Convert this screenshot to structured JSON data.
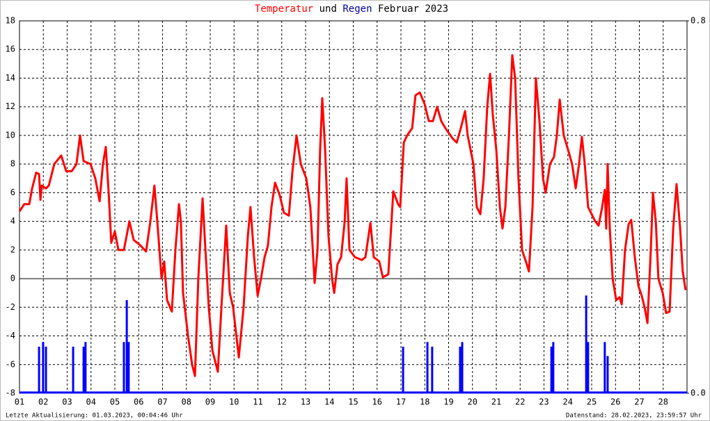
{
  "chart_data": {
    "type": "line",
    "title_middle": "und",
    "title_suffix": "Februar 2023",
    "footer_left": "Letzte Aktualisierung: 01.03.2023, 00:04:46 Uhr",
    "footer_right": "Datenstand: 28.02.2023, 23:59:57 Uhr",
    "xlim": [
      1,
      29
    ],
    "xticks": [
      {
        "value": 1,
        "label": "01"
      },
      {
        "value": 2,
        "label": "02"
      },
      {
        "value": 3,
        "label": "03"
      },
      {
        "value": 4,
        "label": "04"
      },
      {
        "value": 5,
        "label": "05"
      },
      {
        "value": 6,
        "label": "06"
      },
      {
        "value": 7,
        "label": "07"
      },
      {
        "value": 8,
        "label": "08"
      },
      {
        "value": 9,
        "label": "09"
      },
      {
        "value": 10,
        "label": "10"
      },
      {
        "value": 11,
        "label": "11"
      },
      {
        "value": 12,
        "label": "12"
      },
      {
        "value": 13,
        "label": "13"
      },
      {
        "value": 14,
        "label": "14"
      },
      {
        "value": 15,
        "label": "15"
      },
      {
        "value": 16,
        "label": "16"
      },
      {
        "value": 17,
        "label": "17"
      },
      {
        "value": 18,
        "label": "18"
      },
      {
        "value": 19,
        "label": "19"
      },
      {
        "value": 20,
        "label": "20"
      },
      {
        "value": 21,
        "label": "21"
      },
      {
        "value": 22,
        "label": "22"
      },
      {
        "value": 23,
        "label": "23"
      },
      {
        "value": 24,
        "label": "24"
      },
      {
        "value": 25,
        "label": "25"
      },
      {
        "value": 26,
        "label": "26"
      },
      {
        "value": 27,
        "label": "27"
      },
      {
        "value": 28,
        "label": "28"
      }
    ],
    "ylim": [
      -8,
      18
    ],
    "yticks": [
      -8,
      -6,
      -4,
      -2,
      0,
      2,
      4,
      6,
      8,
      10,
      12,
      14,
      16,
      18
    ],
    "y2lim": [
      0,
      0.8
    ],
    "y2ticks": [
      {
        "value": 0,
        "label": "0.0"
      },
      {
        "value": 0.8,
        "label": "0.8"
      }
    ],
    "grid": true,
    "series": [
      {
        "name": "Temperatur",
        "color": "#ff0000",
        "x": [
          1.0,
          1.2,
          1.41,
          1.53,
          1.7,
          1.82,
          1.88,
          1.93,
          2.11,
          2.23,
          2.46,
          2.75,
          2.96,
          3.19,
          3.39,
          3.54,
          3.69,
          3.98,
          4.18,
          4.36,
          4.5,
          4.62,
          4.74,
          4.85,
          5.0,
          5.15,
          5.38,
          5.61,
          5.79,
          6.02,
          6.31,
          6.49,
          6.66,
          6.78,
          6.96,
          7.07,
          7.19,
          7.39,
          7.54,
          7.69,
          7.77,
          7.86,
          8.07,
          8.24,
          8.36,
          8.5,
          8.68,
          8.8,
          8.94,
          9.09,
          9.32,
          9.47,
          9.67,
          9.82,
          9.96,
          10.2,
          10.4,
          10.58,
          10.69,
          10.84,
          10.99,
          11.13,
          11.28,
          11.42,
          11.57,
          11.72,
          11.92,
          12.09,
          12.3,
          12.45,
          12.62,
          12.8,
          13.03,
          13.2,
          13.38,
          13.5,
          13.61,
          13.7,
          13.82,
          13.96,
          14.11,
          14.2,
          14.34,
          14.49,
          14.64,
          14.72,
          14.84,
          15.07,
          15.36,
          15.51,
          15.72,
          15.86,
          16.09,
          16.24,
          16.47,
          16.68,
          16.88,
          16.97,
          17.12,
          17.26,
          17.47,
          17.61,
          17.79,
          17.99,
          18.17,
          18.34,
          18.52,
          18.69,
          18.87,
          19.16,
          19.34,
          19.51,
          19.69,
          19.8,
          20.04,
          20.18,
          20.33,
          20.47,
          20.62,
          20.74,
          20.85,
          21.0,
          21.15,
          21.26,
          21.38,
          21.53,
          21.67,
          21.79,
          21.93,
          22.08,
          22.28,
          22.37,
          22.52,
          22.66,
          22.81,
          22.96,
          23.07,
          23.25,
          23.42,
          23.54,
          23.66,
          23.83,
          24.01,
          24.18,
          24.33,
          24.47,
          24.59,
          24.71,
          24.85,
          25.0,
          25.15,
          25.29,
          25.44,
          25.55,
          25.61,
          25.67,
          25.76,
          25.88,
          26.03,
          26.17,
          26.26,
          26.4,
          26.55,
          26.66,
          26.81,
          26.96,
          27.1,
          27.22,
          27.34,
          27.48,
          27.57,
          27.69,
          27.8,
          27.98,
          28.12,
          28.27,
          28.42,
          28.56,
          28.71,
          28.82,
          28.94
        ],
        "values": [
          4.7,
          5.2,
          5.2,
          6.3,
          7.4,
          7.3,
          5.5,
          6.5,
          6.3,
          6.5,
          8,
          8.6,
          7.5,
          7.5,
          8,
          10,
          8.2,
          8,
          7,
          5.4,
          8,
          9.2,
          6,
          2.5,
          3.3,
          2,
          2,
          4,
          2.7,
          2.4,
          1.9,
          4,
          6.5,
          4,
          0,
          1.2,
          -1.5,
          -2.3,
          2,
          5.2,
          4,
          -1,
          -4,
          -6,
          -6.8,
          0,
          5.6,
          2,
          -2,
          -5,
          -6.5,
          -2,
          3.7,
          -1,
          -2,
          -5.5,
          -2,
          3,
          5,
          1.5,
          -1.2,
          0,
          1.5,
          2.3,
          5,
          6.7,
          5.8,
          4.6,
          4.4,
          7.5,
          10,
          8,
          7,
          5,
          -0.3,
          2,
          9,
          12.6,
          9,
          3,
          0,
          -1,
          1,
          1.5,
          4,
          7,
          2,
          1.5,
          1.3,
          1.5,
          3.9,
          1.5,
          1.2,
          0.1,
          0.3,
          6.1,
          5.2,
          5,
          9.5,
          10,
          10.5,
          12.8,
          13,
          12.2,
          11,
          11,
          12,
          11,
          10.5,
          9.8,
          9.5,
          10.5,
          11.7,
          10,
          8,
          5,
          4.5,
          7,
          12,
          14.3,
          11.5,
          9,
          5,
          3.5,
          5,
          10,
          15.6,
          14,
          7,
          2,
          1,
          0.5,
          5,
          14,
          11,
          7,
          6,
          8,
          8.5,
          10,
          12.5,
          10,
          9,
          8,
          6.3,
          8,
          9.9,
          8,
          5,
          4.5,
          4,
          3.7,
          5,
          6.2,
          3.5,
          8,
          3.5,
          0,
          -1.5,
          -1.3,
          -1.8,
          2,
          3.8,
          4.1,
          1.5,
          -0.5,
          -1.2,
          -2,
          -3.1,
          2,
          6,
          4,
          0,
          -1,
          -2.4,
          -2.3,
          3.5,
          6.6,
          3.5,
          0.5,
          -0.8
        ]
      },
      {
        "name": "Regen",
        "color": "#0000ff",
        "axis": "y2",
        "kind": "bar",
        "x": [
          1.82,
          1.99,
          2.11,
          3.25,
          3.69,
          3.77,
          5.38,
          5.5,
          5.58,
          17.09,
          18.11,
          18.31,
          19.48,
          19.57,
          23.31,
          23.39,
          24.77,
          24.85,
          25.55,
          25.67
        ],
        "values": [
          0.1,
          0.11,
          0.1,
          0.1,
          0.1,
          0.11,
          0.11,
          0.2,
          0.11,
          0.1,
          0.11,
          0.1,
          0.1,
          0.11,
          0.1,
          0.11,
          0.21,
          0.11,
          0.11,
          0.08
        ]
      }
    ]
  }
}
